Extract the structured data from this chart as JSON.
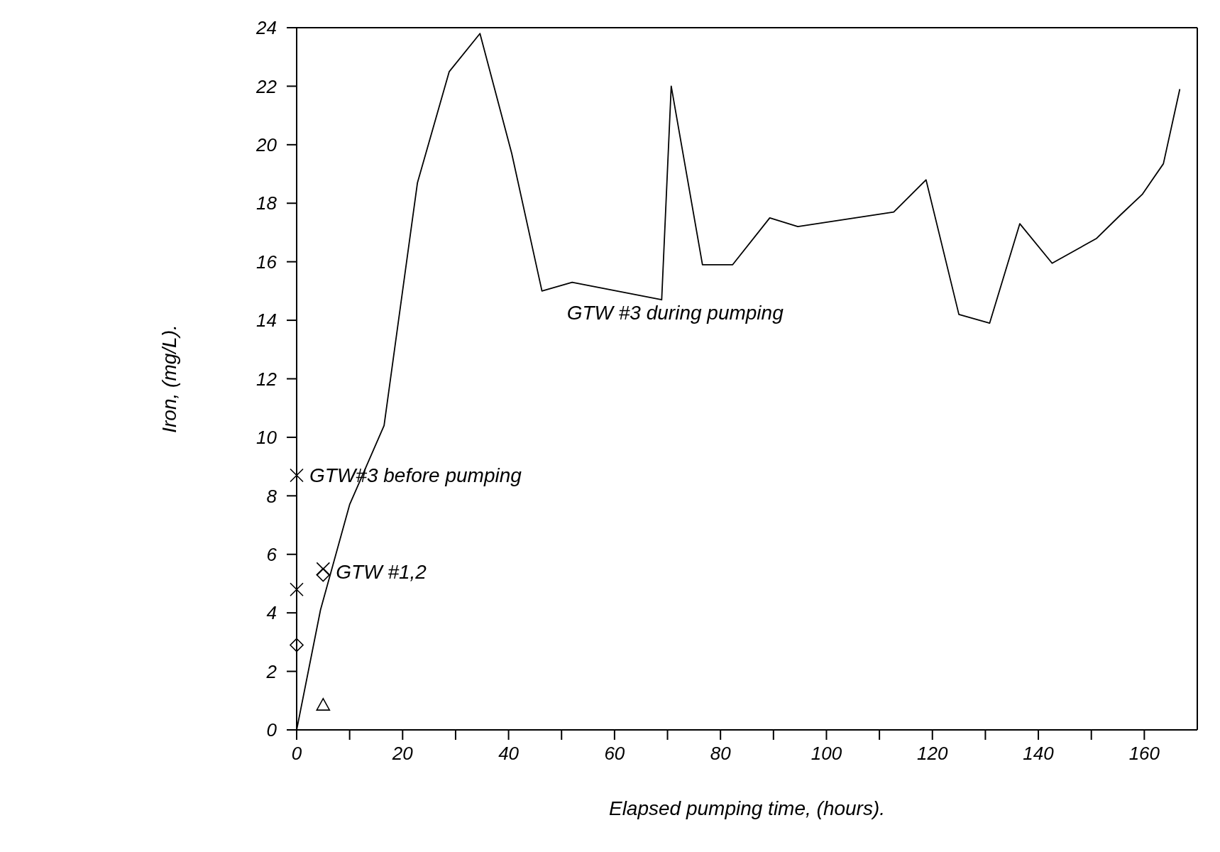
{
  "chart_data": {
    "type": "line",
    "xlabel": "Elapsed pumping time, (hours).",
    "ylabel": "Iron, (mg/L).",
    "xlim": [
      0,
      170
    ],
    "ylim": [
      0,
      24
    ],
    "xticks": [
      0,
      {
        "value": 10,
        "label": null
      },
      20,
      {
        "value": 30,
        "label": null
      },
      40,
      {
        "value": 50,
        "label": null
      },
      60,
      {
        "value": 70,
        "label": null
      },
      80,
      {
        "value": 90,
        "label": null
      },
      100,
      {
        "value": 110,
        "label": null
      },
      120,
      {
        "value": 130,
        "label": null
      },
      140,
      {
        "value": 150,
        "label": null
      },
      160
    ],
    "yticks": [
      0,
      2,
      4,
      6,
      8,
      10,
      12,
      14,
      16,
      18,
      20,
      22,
      24
    ],
    "grid": false,
    "series": [
      {
        "color": "#000000",
        "marker": "none",
        "x": [
          0,
          4.5,
          10,
          16.5,
          22.8,
          28.8,
          34.6,
          40.6,
          46.3,
          52,
          68.9,
          70.7,
          76.6,
          82.3,
          89.3,
          94.6,
          112.7,
          118.8,
          125,
          130.8,
          136.5,
          142.6,
          151,
          155.5,
          159.6,
          163.6,
          166.7
        ],
        "values": [
          0,
          4.1,
          7.7,
          10.4,
          18.7,
          22.5,
          23.8,
          19.7,
          15.0,
          15.3,
          14.7,
          22.0,
          15.9,
          15.9,
          17.5,
          17.2,
          17.7,
          18.8,
          14.2,
          13.9,
          17.3,
          15.95,
          16.8,
          17.6,
          18.3,
          19.35,
          21.9
        ]
      },
      {
        "type": "scatter",
        "color": "#000000",
        "marker": "cross",
        "x": [
          0,
          5
        ],
        "values": [
          4.8,
          5.5
        ]
      },
      {
        "type": "scatter",
        "color": "#000000",
        "marker": "diamond",
        "x": [
          0,
          5
        ],
        "values": [
          2.9,
          5.3
        ]
      },
      {
        "type": "scatter",
        "color": "#000000",
        "marker": "triangle",
        "x": [
          5
        ],
        "values": [
          0.85
        ]
      },
      {
        "type": "scatter",
        "color": "#000000",
        "marker": "cross",
        "x": [
          0
        ],
        "values": [
          8.7
        ]
      }
    ],
    "annotations": [
      {
        "text": "GTW#3 before pumping",
        "x": 0,
        "y": 8.7
      },
      {
        "text": "GTW #1,2",
        "x": 5,
        "y": 5.4
      },
      "GTW #3 during pumping"
    ]
  }
}
